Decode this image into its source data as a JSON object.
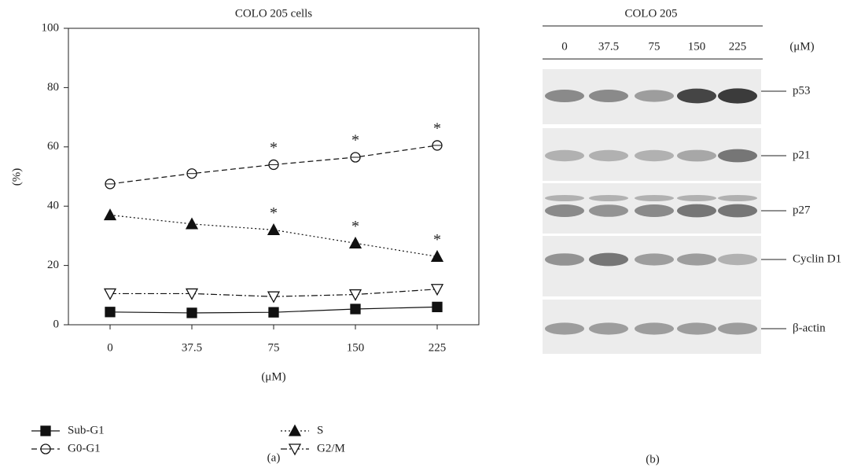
{
  "chart_data": {
    "type": "line",
    "title": "COLO 205 cells",
    "xlabel": "(μM)",
    "ylabel": "(%)",
    "panel_label": "(a)",
    "categories": [
      "0",
      "37.5",
      "75",
      "150",
      "225"
    ],
    "ylim": [
      0,
      100
    ],
    "yticks": [
      0,
      20,
      40,
      60,
      80,
      100
    ],
    "series": [
      {
        "name": "Sub-G1",
        "color": "#111111",
        "marker": "square",
        "filled": true,
        "dash": "solid",
        "values": [
          4.3,
          4.0,
          4.2,
          5.3,
          6.0
        ],
        "annotations": [
          null,
          null,
          null,
          null,
          "*"
        ]
      },
      {
        "name": "G0-G1",
        "color": "#111111",
        "marker": "circle",
        "filled": false,
        "dash": "dashed",
        "values": [
          47.5,
          51,
          54,
          56.5,
          60.5
        ],
        "annotations": [
          null,
          null,
          "*",
          "*",
          "*"
        ]
      },
      {
        "name": "S",
        "color": "#111111",
        "marker": "triangle",
        "filled": true,
        "dash": "dotted",
        "values": [
          37,
          34,
          32,
          27.5,
          23
        ],
        "annotations": [
          null,
          null,
          "*",
          "*",
          "*"
        ]
      },
      {
        "name": "G2/M",
        "color": "#111111",
        "marker": "triangle-down",
        "filled": false,
        "dash": "dashdot",
        "values": [
          10.5,
          10.5,
          9.5,
          10.2,
          12
        ],
        "annotations": [
          null,
          null,
          null,
          null,
          null
        ]
      }
    ]
  },
  "blot": {
    "title": "COLO 205",
    "lanes": [
      "0",
      "37.5",
      "75",
      "150",
      "225"
    ],
    "unit": "(μM)",
    "panel_label": "(b)",
    "proteins": [
      "p53",
      "p21",
      "p27",
      "Cyclin D1",
      "β-actin"
    ]
  }
}
